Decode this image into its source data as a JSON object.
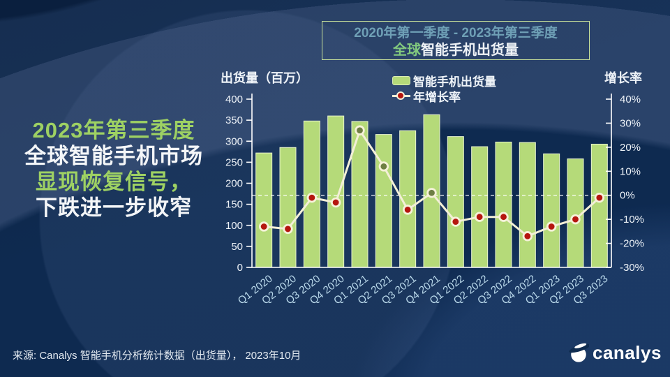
{
  "headline": {
    "line1": "2023年第三季度",
    "line2": "全球智能手机市场",
    "line3": "显现恢复信号，",
    "line4": "下跌进一步收窄"
  },
  "title": {
    "range": "2020年第一季度 - 2023年第三季度",
    "main_accent": "全球",
    "main_rest": "智能手机出货量"
  },
  "legend": {
    "bars": "智能手机出货量",
    "line": "年增长率"
  },
  "source": "来源: Canalys 智能手机分析统计数据（出货量）， 2023年10月",
  "logo": {
    "text": "canalys"
  },
  "colors": {
    "background": "#0d2950",
    "bar": "#b5da79",
    "bar_border": "#e9f4cf",
    "line": "#f3efd7",
    "point_red": "#b5160f",
    "point_green": "#6e7f44",
    "point_ring": "#f6f2da",
    "axis": "#ffffff",
    "axis_text": "#eef3f8",
    "x_label": "#b9d8ea",
    "zero_line": "#ffffff"
  },
  "chart_data": {
    "type": "bar",
    "subtype": "bar+line combo",
    "title": "2020年第一季度 - 2023年第三季度 全球智能手机出货量",
    "categories": [
      "Q1 2020",
      "Q2 2020",
      "Q3 2020",
      "Q4 2020",
      "Q1 2021",
      "Q2 2021",
      "Q3 2021",
      "Q4 2021",
      "Q1 2022",
      "Q2 2022",
      "Q3 2022",
      "Q4 2022",
      "Q1 2023",
      "Q2 2023",
      "Q3 2023"
    ],
    "series": [
      {
        "name": "智能手机出货量",
        "type": "bar",
        "axis": "left",
        "values": [
          272,
          285,
          348,
          360,
          347,
          316,
          325,
          363,
          311,
          287,
          298,
          297,
          270,
          258,
          293
        ]
      },
      {
        "name": "年增长率",
        "type": "line",
        "axis": "right",
        "values_pct": [
          -13,
          -14,
          -1,
          -3,
          27,
          12,
          -6,
          1,
          -11,
          -9,
          -9,
          -17,
          -13,
          -10,
          -1
        ],
        "marker_color_keys": [
          "point_red",
          "point_red",
          "point_red",
          "point_red",
          "point_green",
          "point_green",
          "point_red",
          "point_green",
          "point_red",
          "point_red",
          "point_red",
          "point_red",
          "point_red",
          "point_red",
          "point_red"
        ]
      }
    ],
    "left_axis": {
      "title": "出货量（百万）",
      "min": 0,
      "max": 400,
      "step": 50
    },
    "right_axis": {
      "title": "增长率",
      "min": -30,
      "max": 40,
      "step": 10,
      "format": "percent"
    },
    "zero_growth_line": "dashed",
    "grid": false,
    "legend_position": "top-center",
    "x_label_rotation_deg": -38
  }
}
